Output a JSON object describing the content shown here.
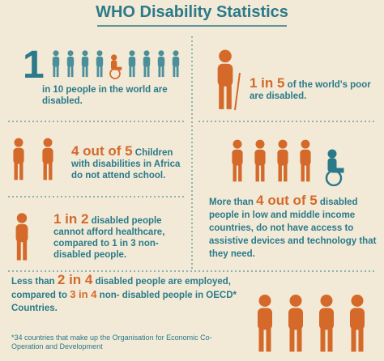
{
  "title": "WHO Disability Statistics",
  "sections": [
    {
      "parts": [
        "1",
        "in 10 people in the world are disabled."
      ]
    },
    {
      "parts": [
        "1 in 5",
        "of the world's poor are disabled."
      ]
    },
    {
      "parts": [
        "4 out of 5",
        "Children with disabilities in Africa do not attend school."
      ]
    },
    {
      "parts": [
        "More than",
        "4 out of 5",
        "disabled people in low and middle income countries, do not have access to assistive devices and technology that they need."
      ]
    },
    {
      "parts": [
        "1 in 2",
        "disabled people cannot afford healthcare, compared to 1 in 3 non-disabled people."
      ]
    },
    {
      "parts": [
        "Less than",
        "2 in 4",
        "disabled people are employed, compared to",
        "3 in 4",
        "non- disabled people in OECD* Countries."
      ]
    }
  ],
  "footnote": "*34 countries that make up the Organisation for Economic Co-Operation and Development"
}
